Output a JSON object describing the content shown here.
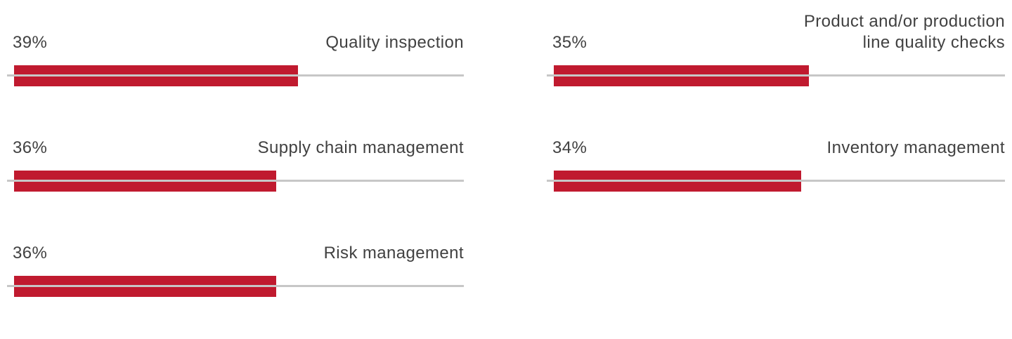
{
  "chart_data": {
    "type": "bar",
    "orientation": "horizontal",
    "title": "",
    "xlabel": "",
    "ylabel": "",
    "value_unit": "%",
    "value_axis_max": 100,
    "legend": "none",
    "grid": "off",
    "bar_color": "#C01A2F",
    "baseline_color": "#C7C7C7",
    "text_color": "#414141",
    "columns": [
      {
        "name": "left",
        "items": [
          {
            "label": "Quality inspection",
            "value": 39,
            "value_label": "39%"
          },
          {
            "label": "Supply chain management",
            "value": 36,
            "value_label": "36%"
          },
          {
            "label": "Risk management",
            "value": 36,
            "value_label": "36%"
          }
        ]
      },
      {
        "name": "right",
        "items": [
          {
            "label": "Product and/or production line quality checks",
            "value": 35,
            "value_label": "35%"
          },
          {
            "label": "Inventory management",
            "value": 34,
            "value_label": "34%"
          }
        ]
      }
    ]
  }
}
